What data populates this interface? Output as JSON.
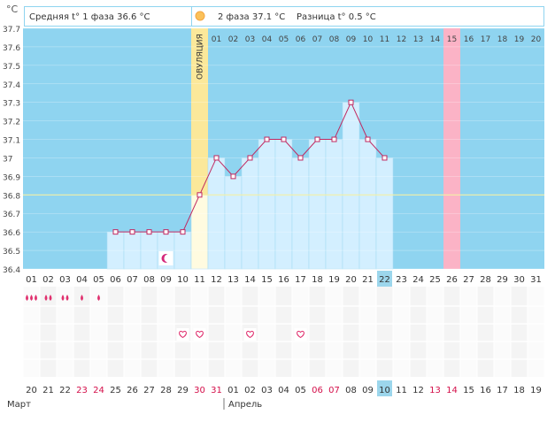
{
  "unit_label": "°C",
  "header": {
    "phase1": "Средняя t° 1 фаза 36.6 °C",
    "phase2": "2 фаза 37.1 °C",
    "diff": "Разница t° 0.5 °C"
  },
  "ovulation_label": "ОВУЛЯЦИЯ",
  "colors": {
    "chart_bg": "#8fd4f0",
    "bar_fill": "#d3efff",
    "line": "#c02860",
    "ovulation": "#fbe89a",
    "highlight_day": "#fbb3c6",
    "header_border": "#8fd4f0",
    "today": "#9cd6ec",
    "weekend": "#d40f4a",
    "drop": "#e0306e"
  },
  "chart_data": {
    "type": "bar",
    "ylim": [
      36.4,
      37.7
    ],
    "y_ticks": [
      "36.4",
      "36.5",
      "36.6",
      "36.7",
      "36.8",
      "36.9",
      "37",
      "37.1",
      "37.2",
      "37.3",
      "37.4",
      "37.5",
      "37.6",
      "37.7"
    ],
    "y_values": [
      36.4,
      36.5,
      36.6,
      36.7,
      36.8,
      36.9,
      37.0,
      37.1,
      37.2,
      37.3,
      37.4,
      37.5,
      37.6,
      37.7
    ],
    "cycle_days": [
      "01",
      "02",
      "03",
      "04",
      "05",
      "06",
      "07",
      "08",
      "09",
      "10",
      "11",
      "12",
      "13",
      "14",
      "15",
      "16",
      "17",
      "18",
      "19",
      "20",
      "21",
      "22",
      "23",
      "24",
      "25",
      "26",
      "27",
      "28",
      "29",
      "30",
      "31"
    ],
    "temperatures": [
      null,
      null,
      null,
      null,
      null,
      36.6,
      36.6,
      36.6,
      36.6,
      36.6,
      36.8,
      37.0,
      36.9,
      37.0,
      37.1,
      37.1,
      37.0,
      37.1,
      37.1,
      37.3,
      37.1,
      37.0,
      null,
      null,
      null,
      null,
      null,
      null,
      null,
      null,
      null
    ],
    "coverline": 36.8,
    "ovulation_day": 11,
    "highlight_day": 26,
    "today_day": 22,
    "upper_days": [
      "01",
      "02",
      "03",
      "04",
      "05",
      "06",
      "07",
      "08",
      "09",
      "10",
      "11",
      "12",
      "13",
      "14",
      "15",
      "16",
      "17",
      "18",
      "19",
      "20"
    ],
    "upper_days_start": 12,
    "moon_day": 9,
    "drop_days": [
      1,
      2,
      3,
      4,
      5
    ],
    "drop_counts": [
      3,
      2,
      2,
      1,
      1
    ],
    "heart_days": [
      10,
      11,
      14,
      17
    ],
    "calendar_dates": [
      "20",
      "21",
      "22",
      "23",
      "24",
      "25",
      "26",
      "27",
      "28",
      "29",
      "30",
      "31",
      "01",
      "02",
      "03",
      "04",
      "05",
      "06",
      "07",
      "08",
      "09",
      "10",
      "11",
      "12",
      "13",
      "14",
      "15",
      "16",
      "17",
      "18",
      "19"
    ],
    "weekend_days": [
      4,
      5,
      11,
      12,
      18,
      19,
      25,
      26
    ],
    "month1": "Март",
    "month2": "Апрель",
    "month_break_day": 13
  }
}
